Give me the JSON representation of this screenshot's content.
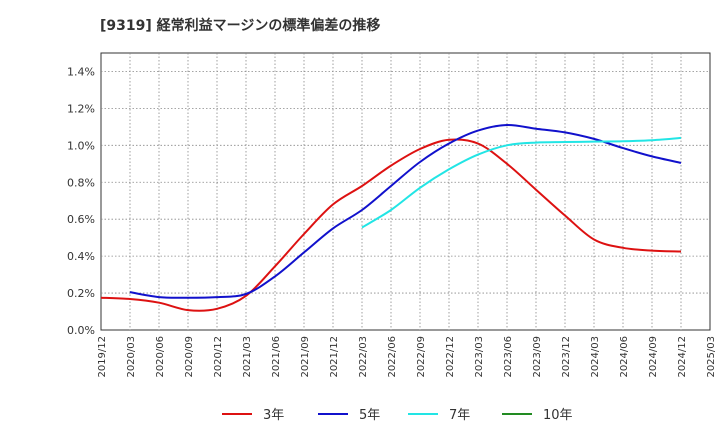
{
  "chart_data": {
    "type": "line",
    "title": "[9319]  経常利益マージンの標準偏差の推移",
    "xlabel": "",
    "ylabel": "",
    "x_ticks": [
      "2019/12",
      "2020/03",
      "2020/06",
      "2020/09",
      "2020/12",
      "2021/03",
      "2021/06",
      "2021/09",
      "2021/12",
      "2022/03",
      "2022/06",
      "2022/09",
      "2022/12",
      "2023/03",
      "2023/06",
      "2023/09",
      "2023/12",
      "2024/03",
      "2024/06",
      "2024/09",
      "2024/12",
      "2025/03"
    ],
    "y_ticks": [
      "0.0%",
      "0.2%",
      "0.4%",
      "0.6%",
      "0.8%",
      "1.0%",
      "1.2%",
      "1.4%"
    ],
    "ylim": [
      0,
      1.5
    ],
    "grid": true,
    "legend_position": "bottom",
    "series": [
      {
        "name": "3年",
        "color": "#dd1111",
        "x": [
          "2019/12",
          "2020/03",
          "2020/06",
          "2020/09",
          "2020/12",
          "2021/03",
          "2021/06",
          "2021/09",
          "2021/12",
          "2022/03",
          "2022/06",
          "2022/09",
          "2022/12",
          "2023/03",
          "2023/06",
          "2023/09",
          "2023/12",
          "2024/03",
          "2024/06",
          "2024/09",
          "2024/12"
        ],
        "values": [
          0.175,
          0.168,
          0.148,
          0.108,
          0.115,
          0.185,
          0.345,
          0.52,
          0.68,
          0.78,
          0.89,
          0.98,
          1.03,
          1.01,
          0.9,
          0.76,
          0.62,
          0.49,
          0.445,
          0.43,
          0.425
        ]
      },
      {
        "name": "5年",
        "color": "#1111cc",
        "x": [
          "2020/03",
          "2020/06",
          "2020/09",
          "2020/12",
          "2021/03",
          "2021/06",
          "2021/09",
          "2021/12",
          "2022/03",
          "2022/06",
          "2022/09",
          "2022/12",
          "2023/03",
          "2023/06",
          "2023/09",
          "2023/12",
          "2024/03",
          "2024/06",
          "2024/09",
          "2024/12"
        ],
        "values": [
          0.205,
          0.178,
          0.175,
          0.178,
          0.195,
          0.29,
          0.42,
          0.55,
          0.65,
          0.78,
          0.91,
          1.01,
          1.08,
          1.11,
          1.09,
          1.07,
          1.035,
          0.985,
          0.94,
          0.905
        ]
      },
      {
        "name": "7年",
        "color": "#22e5e5",
        "x": [
          "2022/03",
          "2022/06",
          "2022/09",
          "2022/12",
          "2023/03",
          "2023/06",
          "2023/09",
          "2023/12",
          "2024/03",
          "2024/06",
          "2024/09",
          "2024/12"
        ],
        "values": [
          0.555,
          0.65,
          0.77,
          0.87,
          0.95,
          1.0,
          1.015,
          1.018,
          1.02,
          1.022,
          1.028,
          1.04
        ]
      },
      {
        "name": "10年",
        "color": "#228b22",
        "x": [],
        "values": []
      }
    ]
  }
}
